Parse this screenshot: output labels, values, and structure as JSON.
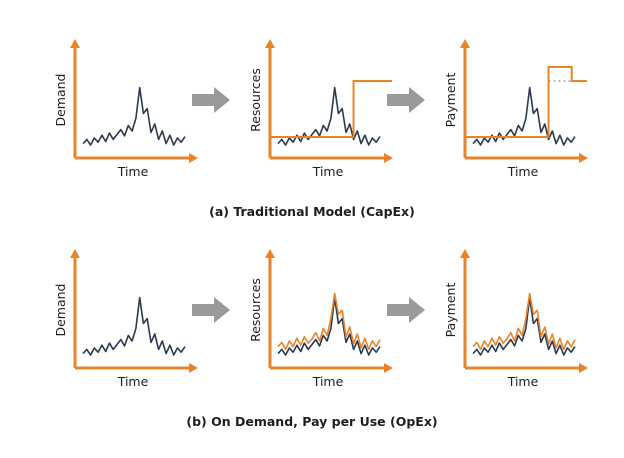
{
  "colors": {
    "axis": "#E8832A",
    "demand": "#2B3A4F",
    "arrow": "#9A9A9A",
    "dotted": "#A8A8A8"
  },
  "row_a": {
    "caption": "(a) Traditional Model (CapEx)",
    "panels": [
      {
        "ylabel": "Demand",
        "xlabel": "Time"
      },
      {
        "ylabel": "Resources",
        "xlabel": "Time"
      },
      {
        "ylabel": "Payment",
        "xlabel": "Time"
      }
    ]
  },
  "row_b": {
    "caption": "(b) On Demand, Pay per Use (OpEx)",
    "panels": [
      {
        "ylabel": "Demand",
        "xlabel": "Time"
      },
      {
        "ylabel": "Resources",
        "xlabel": "Time"
      },
      {
        "ylabel": "Payment",
        "xlabel": "Time"
      }
    ]
  },
  "demand_series": [
    0.12,
    0.18,
    0.1,
    0.2,
    0.14,
    0.24,
    0.15,
    0.27,
    0.18,
    0.25,
    0.32,
    0.23,
    0.38,
    0.3,
    0.48,
    0.92,
    0.55,
    0.62,
    0.28,
    0.4,
    0.18,
    0.3,
    0.12,
    0.24,
    0.1,
    0.2,
    0.14,
    0.22
  ],
  "usage_series": [
    0.22,
    0.28,
    0.18,
    0.3,
    0.22,
    0.34,
    0.24,
    0.36,
    0.27,
    0.33,
    0.42,
    0.3,
    0.48,
    0.38,
    0.62,
    0.98,
    0.68,
    0.74,
    0.36,
    0.5,
    0.26,
    0.4,
    0.2,
    0.34,
    0.18,
    0.3,
    0.22,
    0.32
  ],
  "capex": {
    "resource_base": 0.3,
    "resource_step": 1.1,
    "payment_base": 0.3,
    "payment_step": 1.3,
    "payment_settle": 1.1,
    "step_at": 0.72
  }
}
